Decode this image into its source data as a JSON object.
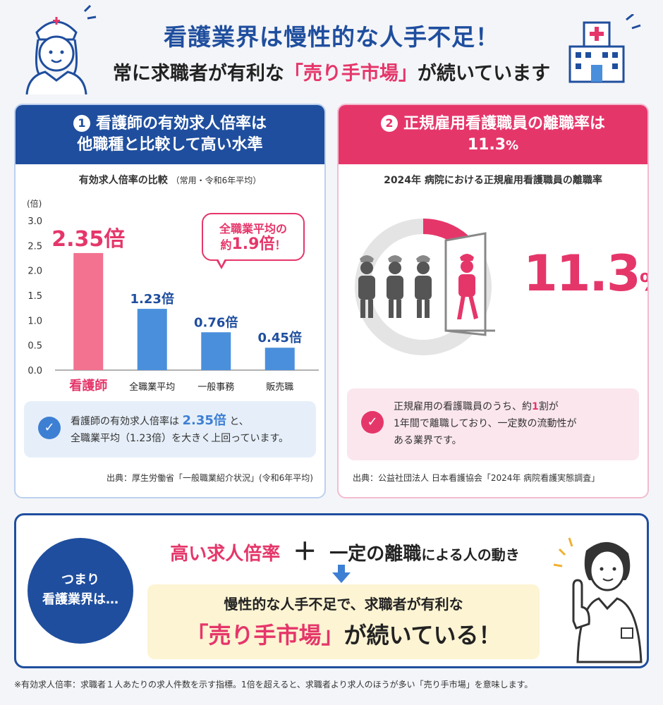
{
  "header": {
    "title": "看護業界は慢性的な人手不足！",
    "subtitle_pre": "常に求職者が有利な",
    "subtitle_highlight": "「売り手市場」",
    "subtitle_post": "が続いています"
  },
  "card1": {
    "number": "1",
    "heading_line1": "看護師の有効求人倍率は",
    "heading_line2": "他職種と比較して高い水準",
    "chart_title": "有効求人倍率の比較",
    "chart_subtitle": "（常用・令和6年平均）",
    "bubble_line1": "全職業平均の",
    "bubble_pre": "約",
    "bubble_value": "1.9倍",
    "bubble_post": "！",
    "note_pre": "看護師の有効求人倍率は",
    "note_value": "2.35倍",
    "note_mid": "と、",
    "note_line2": "全職業平均（1.23倍）を大きく上回っています。",
    "source": "出典：厚生労働省「一般職業紹介状況」(令和6年平均)",
    "check_icon": "check-circle-icon"
  },
  "chart_data": {
    "type": "bar",
    "unit_label": "(倍)",
    "categories": [
      "看護師",
      "全職業平均",
      "一般事務",
      "販売職"
    ],
    "values": [
      2.35,
      1.23,
      0.76,
      0.45
    ],
    "value_labels": [
      "2.35倍",
      "1.23倍",
      "0.76倍",
      "0.45倍"
    ],
    "ylim": [
      0,
      3.0
    ],
    "yticks": [
      "0.0",
      "0.5",
      "1.0",
      "1.5",
      "2.0",
      "2.5",
      "3.0"
    ],
    "colors": [
      "#f2728f",
      "#4a8fdc",
      "#4a8fdc",
      "#4a8fdc"
    ],
    "label_colors": [
      "#e5366a",
      "#1f4e9e",
      "#1f4e9e",
      "#1f4e9e"
    ]
  },
  "card2": {
    "number": "2",
    "heading_line1": "正規雇用看護職員の離職率は",
    "heading_value": "11.3",
    "heading_unit": "%",
    "subtitle": "2024年 病院における正規雇用看護職員の離職率",
    "rate": 11.3,
    "big_value": "11.3",
    "big_unit": "%",
    "note_line1_pre": "正規雇用の看護職員のうち、約",
    "note_line1_value": "1",
    "note_line1_post": "割が",
    "note_line2": "1年間で離職しており、一定数の流動性が",
    "note_line3": "ある業界です。",
    "source": "出典：公益社団法人 日本看護協会「2024年 病院看護実態調査」",
    "check_icon": "check-circle-icon"
  },
  "summary": {
    "badge_line1": "つまり",
    "badge_line2": "看護業界は…",
    "term1": "高い求人倍率",
    "plus": "＋",
    "term2": "一定の離職",
    "term2_suffix": "による人の動き",
    "result_line1": "慢性的な人手不足で、求職者が有利な",
    "result_highlight": "「売り手市場」",
    "result_post": "が続いている！"
  },
  "footnote": "※有効求人倍率：求職者１人あたりの求人件数を示す指標。1倍を超えると、求職者より求人のほうが多い「売り手市場」を意味します。",
  "colors": {
    "navy": "#1f4e9e",
    "pink": "#e5366a",
    "blue": "#4a8fdc",
    "cream": "#fdf4d3"
  }
}
